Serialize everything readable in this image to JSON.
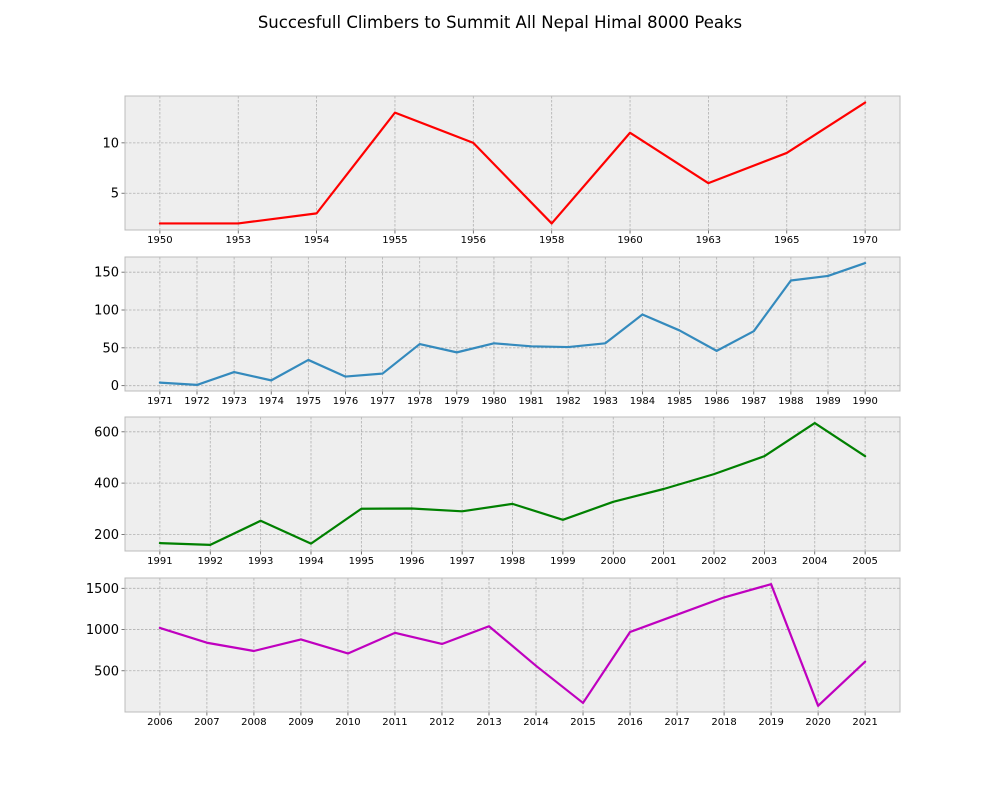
{
  "chart_data": {
    "type": "line",
    "title": "Succesfull Climbers to Summit All Nepal Himal 8000 Peaks",
    "grid": true,
    "panels": [
      {
        "color": "#ff0000",
        "categories": [
          "1950",
          "1953",
          "1954",
          "1955",
          "1956",
          "1958",
          "1960",
          "1963",
          "1965",
          "1970"
        ],
        "values": [
          2,
          2,
          3,
          13,
          10,
          2,
          11,
          6,
          9,
          14
        ],
        "ylim": [
          1.35,
          14.65
        ],
        "yticks": [
          5,
          10
        ]
      },
      {
        "color": "#348abd",
        "categories": [
          "1971",
          "1972",
          "1973",
          "1974",
          "1975",
          "1976",
          "1977",
          "1978",
          "1979",
          "1980",
          "1981",
          "1982",
          "1983",
          "1984",
          "1985",
          "1986",
          "1987",
          "1988",
          "1989",
          "1990"
        ],
        "values": [
          4,
          1,
          18,
          7,
          34,
          12,
          16,
          55,
          44,
          56,
          52,
          51,
          56,
          94,
          73,
          46,
          72,
          139,
          145,
          162
        ],
        "ylim": [
          -7.05,
          170.05
        ],
        "yticks": [
          0,
          50,
          100,
          150
        ]
      },
      {
        "color": "#008000",
        "categories": [
          "1991",
          "1992",
          "1993",
          "1994",
          "1995",
          "1996",
          "1997",
          "1998",
          "1999",
          "2000",
          "2001",
          "2002",
          "2003",
          "2004",
          "2005"
        ],
        "values": [
          166,
          159,
          253,
          164,
          300,
          301,
          290,
          319,
          257,
          327,
          377,
          435,
          505,
          634,
          505
        ],
        "ylim": [
          135.25,
          657.75
        ],
        "yticks": [
          200,
          400,
          600
        ]
      },
      {
        "color": "#bf00bf",
        "categories": [
          "2006",
          "2007",
          "2008",
          "2009",
          "2010",
          "2011",
          "2012",
          "2013",
          "2014",
          "2015",
          "2016",
          "2017",
          "2018",
          "2019",
          "2020",
          "2021"
        ],
        "values": [
          1020,
          840,
          740,
          880,
          710,
          960,
          825,
          1040,
          560,
          110,
          970,
          1180,
          1390,
          1550,
          75,
          610
        ],
        "ylim": [
          0,
          1625
        ],
        "yticks": [
          500,
          1000,
          1500
        ]
      }
    ]
  }
}
